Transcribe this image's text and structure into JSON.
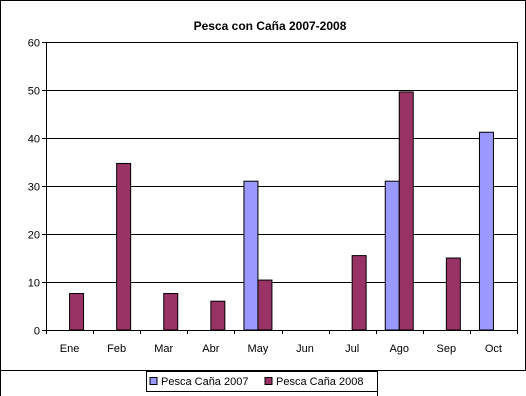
{
  "chart_data": {
    "type": "bar",
    "title": "Pesca con Caña 2007-2008",
    "xlabel": "",
    "ylabel": "",
    "categories": [
      "Ene",
      "Feb",
      "Mar",
      "Abr",
      "May",
      "Jun",
      "Jul",
      "Ago",
      "Sep",
      "Oct"
    ],
    "ylim": [
      0,
      60
    ],
    "yticks": [
      0,
      10,
      20,
      30,
      40,
      50,
      60
    ],
    "grid": true,
    "legend_position": "bottom",
    "series": [
      {
        "name": "Pesca Caña 2007",
        "color": "#9999FF",
        "values": [
          null,
          null,
          null,
          null,
          31,
          null,
          null,
          31,
          null,
          41.2
        ]
      },
      {
        "name": "Pesca Caña 2008",
        "color": "#993366",
        "values": [
          7.6,
          34.7,
          7.6,
          6,
          10.4,
          null,
          15.5,
          49.6,
          15,
          null
        ]
      }
    ]
  }
}
